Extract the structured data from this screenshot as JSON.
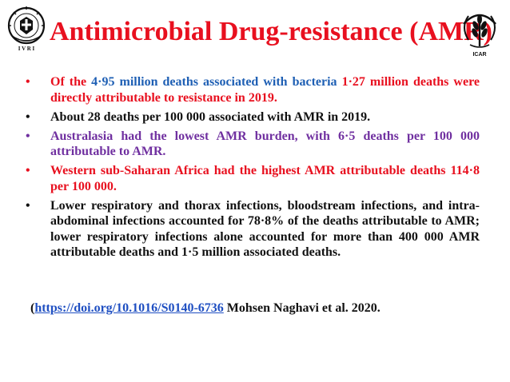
{
  "logos": {
    "left": {
      "icon": "ivri-emblem-icon",
      "text": "I V R I"
    },
    "right": {
      "icon": "icar-wheat-emblem-icon",
      "text": "ICAR"
    }
  },
  "title": "Antimicrobial Drug-resistance (AMR)",
  "bullets": [
    {
      "parts": [
        {
          "text": "Of the ",
          "color": "red"
        },
        {
          "text": "4·95 million deaths associated with bacteria ",
          "color": "blue"
        },
        {
          "text": "1·27 million deaths were directly attributable to resistance in 2019.",
          "color": "red"
        }
      ]
    },
    {
      "parts": [
        {
          "text": "About 28 deaths per 100 000 associated with AMR in 2019.",
          "color": "black"
        }
      ]
    },
    {
      "parts": [
        {
          "text": "Australasia had the lowest AMR burden, with 6·5 deaths per 100 000 attributable to AMR.",
          "color": "purple"
        }
      ]
    },
    {
      "parts": [
        {
          "text": "Western sub-Saharan Africa had the highest AMR attributable deaths 114·8 per 100 000.",
          "color": "red"
        }
      ]
    },
    {
      "parts": [
        {
          "text": "Lower respiratory and thorax infections, bloodstream infections, and intra-abdominal infections accounted for 78·8% of the deaths attributable to AMR; lower respiratory infections alone accounted for more than 400 000 AMR attributable deaths and 1·5 million associated deaths.",
          "color": "black"
        }
      ]
    }
  ],
  "reference": {
    "open": "(",
    "link": "https://doi.org/10.1016/S0140-6736",
    "rest": " Mohsen Naghavi et al. 2020."
  },
  "colors": {
    "red": "#e8101f",
    "blue": "#1e5fb4",
    "purple": "#7030a0",
    "black": "#111111",
    "link": "#1f4fc2"
  }
}
